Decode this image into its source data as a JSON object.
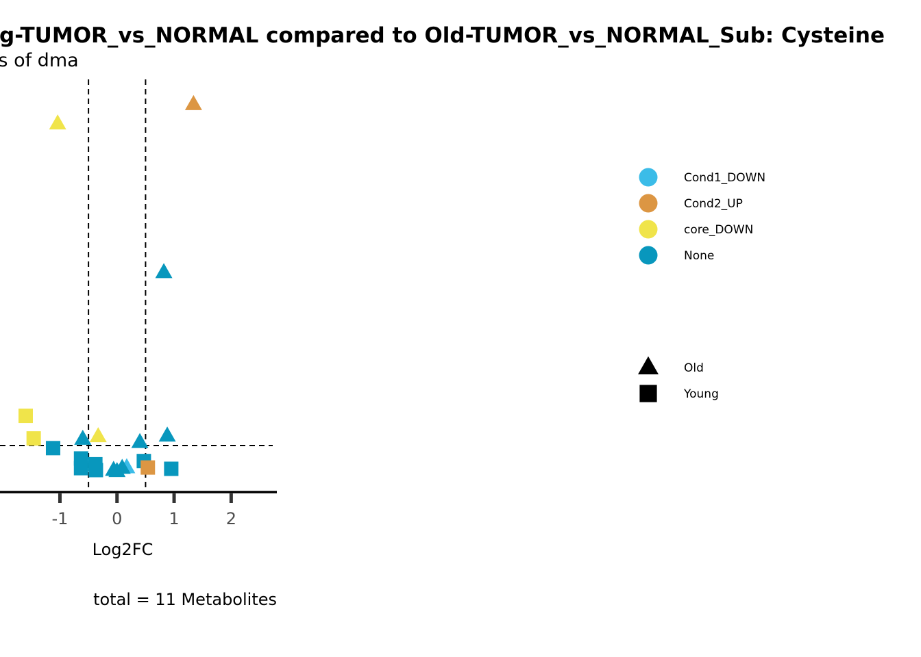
{
  "chart_data": {
    "type": "scatter",
    "title": "Young-TUMOR_vs_NORMAL compared to Old-TUMOR_vs_NORMAL_Sub: Cysteine",
    "subtitle": "Results of dma",
    "xlabel": "Log2FC",
    "caption": "total = 11 Metabolites",
    "x_ticks": [
      "-1",
      "0",
      "1",
      "2"
    ],
    "xlim": [
      -2.05,
      2.8
    ],
    "ylim": [
      0,
      6.45
    ],
    "grid": false,
    "legend_position": "right",
    "x_thresholds": [
      -0.5,
      0.5
    ],
    "y_threshold": 0.72,
    "colors": {
      "Cond1_DOWN": "#3bbce8",
      "Cond2_UP": "#dc9643",
      "core_DOWN": "#f0e44a",
      "None": "#0897bd"
    },
    "legend_color": [
      {
        "label": "Cond1_DOWN",
        "key": "Cond1_DOWN"
      },
      {
        "label": "Cond2_UP",
        "key": "Cond2_UP"
      },
      {
        "label": "core_DOWN",
        "key": "core_DOWN"
      },
      {
        "label": "None",
        "key": "None"
      }
    ],
    "legend_shape": [
      {
        "label": "Old",
        "shape": "triangle"
      },
      {
        "label": "Young",
        "shape": "square"
      }
    ],
    "points": [
      {
        "x": 1.34,
        "y": 6.0,
        "group": "Cond2_UP",
        "shape": "triangle"
      },
      {
        "x": -1.04,
        "y": 5.7,
        "group": "core_DOWN",
        "shape": "triangle"
      },
      {
        "x": 0.82,
        "y": 3.4,
        "group": "None",
        "shape": "triangle"
      },
      {
        "x": -1.6,
        "y": 1.18,
        "group": "core_DOWN",
        "shape": "square"
      },
      {
        "x": -1.46,
        "y": 0.83,
        "group": "core_DOWN",
        "shape": "square"
      },
      {
        "x": -0.33,
        "y": 0.86,
        "group": "core_DOWN",
        "shape": "triangle"
      },
      {
        "x": -0.6,
        "y": 0.82,
        "group": "None",
        "shape": "triangle"
      },
      {
        "x": 0.88,
        "y": 0.87,
        "group": "None",
        "shape": "triangle"
      },
      {
        "x": 0.4,
        "y": 0.77,
        "group": "None",
        "shape": "triangle"
      },
      {
        "x": -1.12,
        "y": 0.68,
        "group": "None",
        "shape": "square"
      },
      {
        "x": -0.63,
        "y": 0.52,
        "group": "None",
        "shape": "square"
      },
      {
        "x": -0.38,
        "y": 0.43,
        "group": "None",
        "shape": "square"
      },
      {
        "x": -0.63,
        "y": 0.37,
        "group": "None",
        "shape": "square"
      },
      {
        "x": -0.37,
        "y": 0.34,
        "group": "None",
        "shape": "square"
      },
      {
        "x": 0.47,
        "y": 0.48,
        "group": "None",
        "shape": "square"
      },
      {
        "x": 0.95,
        "y": 0.36,
        "group": "None",
        "shape": "square"
      },
      {
        "x": 0.17,
        "y": 0.38,
        "group": "Cond1_DOWN",
        "shape": "triangle"
      },
      {
        "x": 0.09,
        "y": 0.37,
        "group": "None",
        "shape": "triangle"
      },
      {
        "x": -0.06,
        "y": 0.34,
        "group": "None",
        "shape": "triangle"
      },
      {
        "x": 0.0,
        "y": 0.32,
        "group": "None",
        "shape": "triangle"
      },
      {
        "x": 0.54,
        "y": 0.38,
        "group": "Cond2_UP",
        "shape": "square"
      }
    ]
  }
}
